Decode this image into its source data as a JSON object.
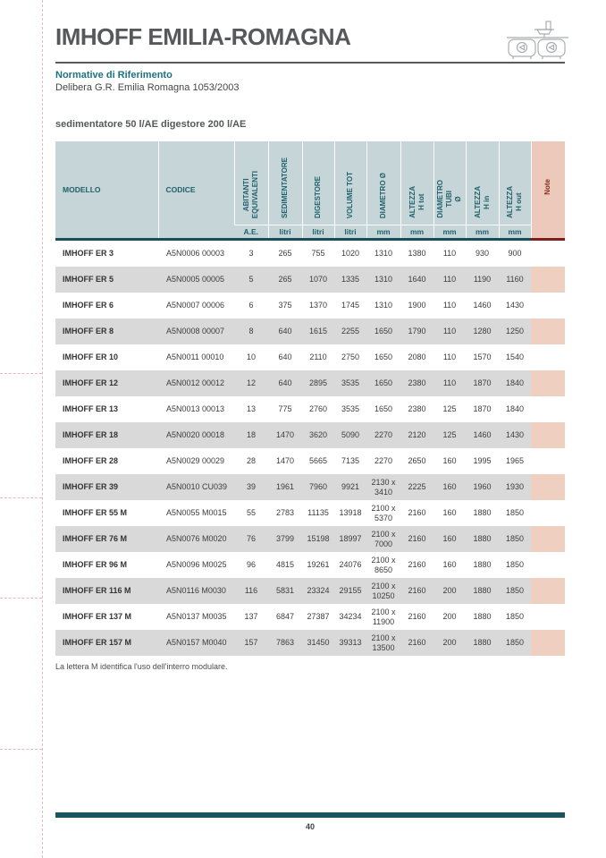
{
  "page": {
    "title": "IMHOFF EMILIA-ROMAGNA",
    "section_heading": "Normative di Riferimento",
    "section_body": "Delibera G.R. Emilia Romagna 1053/2003",
    "table_caption": "sedimentatore 50 l/AE digestore 200 l/AE",
    "footnote": "La lettera M identifica l'uso dell'interro modulare.",
    "page_number": "40",
    "header_icon": "imhoff-tanks-schematic-icon"
  },
  "colors": {
    "accent_teal": "#1a7480",
    "header_bg": "#c6d6d8",
    "header_text": "#20606c",
    "note_bg": "#ecc9ba",
    "note_text": "#8c2b21",
    "teal_border": "#16505c",
    "red_border": "#7e1f1e",
    "row_alt_bg": "#d9d9d9",
    "note_cell_bg": "#eecfc0",
    "bottom_bar": "#1b5560",
    "guide": "#e3b9b9"
  },
  "table": {
    "columns": [
      {
        "label": "MODELLO",
        "unit": ""
      },
      {
        "label": "CODICE",
        "unit": ""
      },
      {
        "label": "ABITANTI\nEQUIVALENTI",
        "unit": "A.E."
      },
      {
        "label": "SEDIMENTATORE",
        "unit": "litri"
      },
      {
        "label": "DIGESTORE",
        "unit": "litri"
      },
      {
        "label": "VOLUME TOT",
        "unit": "litri"
      },
      {
        "label": "DIAMETRO Ø",
        "unit": "mm"
      },
      {
        "label": "ALTEZZA\nH tot",
        "unit": "mm"
      },
      {
        "label": "DIAMETRO\nTUBI\nØ",
        "unit": "mm"
      },
      {
        "label": "ALTEZZA\nH in",
        "unit": "mm"
      },
      {
        "label": "ALTEZZA\nH out",
        "unit": "mm"
      },
      {
        "label": "Note",
        "unit": ""
      }
    ],
    "rows": [
      [
        "IMHOFF ER 3",
        "A5N0006 00003",
        "3",
        "265",
        "755",
        "1020",
        "1310",
        "1380",
        "110",
        "930",
        "900",
        ""
      ],
      [
        "IMHOFF ER 5",
        "A5N0005 00005",
        "5",
        "265",
        "1070",
        "1335",
        "1310",
        "1640",
        "110",
        "1190",
        "1160",
        ""
      ],
      [
        "IMHOFF ER 6",
        "A5N0007 00006",
        "6",
        "375",
        "1370",
        "1745",
        "1310",
        "1900",
        "110",
        "1460",
        "1430",
        ""
      ],
      [
        "IMHOFF ER 8",
        "A5N0008 00007",
        "8",
        "640",
        "1615",
        "2255",
        "1650",
        "1790",
        "110",
        "1280",
        "1250",
        ""
      ],
      [
        "IMHOFF ER 10",
        "A5N0011 00010",
        "10",
        "640",
        "2110",
        "2750",
        "1650",
        "2080",
        "110",
        "1570",
        "1540",
        ""
      ],
      [
        "IMHOFF ER 12",
        "A5N0012 00012",
        "12",
        "640",
        "2895",
        "3535",
        "1650",
        "2380",
        "110",
        "1870",
        "1840",
        ""
      ],
      [
        "IMHOFF ER 13",
        "A5N0013 00013",
        "13",
        "775",
        "2760",
        "3535",
        "1650",
        "2380",
        "125",
        "1870",
        "1840",
        ""
      ],
      [
        "IMHOFF ER 18",
        "A5N0020 00018",
        "18",
        "1470",
        "3620",
        "5090",
        "2270",
        "2120",
        "125",
        "1460",
        "1430",
        ""
      ],
      [
        "IMHOFF ER 28",
        "A5N0029 00029",
        "28",
        "1470",
        "5665",
        "7135",
        "2270",
        "2650",
        "160",
        "1995",
        "1965",
        ""
      ],
      [
        "IMHOFF ER 39",
        "A5N0010 CU039",
        "39",
        "1961",
        "7960",
        "9921",
        "2130 x\n3410",
        "2225",
        "160",
        "1960",
        "1930",
        ""
      ],
      [
        "IMHOFF ER 55 M",
        "A5N0055 M0015",
        "55",
        "2783",
        "11135",
        "13918",
        "2100 x\n5370",
        "2160",
        "160",
        "1880",
        "1850",
        ""
      ],
      [
        "IMHOFF ER 76 M",
        "A5N0076 M0020",
        "76",
        "3799",
        "15198",
        "18997",
        "2100 x\n7000",
        "2160",
        "160",
        "1880",
        "1850",
        ""
      ],
      [
        "IMHOFF ER 96 M",
        "A5N0096 M0025",
        "96",
        "4815",
        "19261",
        "24076",
        "2100 x\n8650",
        "2160",
        "160",
        "1880",
        "1850",
        ""
      ],
      [
        "IMHOFF ER 116 M",
        "A5N0116 M0030",
        "116",
        "5831",
        "23324",
        "29155",
        "2100 x\n10250",
        "2160",
        "200",
        "1880",
        "1850",
        ""
      ],
      [
        "IMHOFF ER 137 M",
        "A5N0137 M0035",
        "137",
        "6847",
        "27387",
        "34234",
        "2100 x\n11900",
        "2160",
        "200",
        "1880",
        "1850",
        ""
      ],
      [
        "IMHOFF ER 157 M",
        "A5N0157 M0040",
        "157",
        "7863",
        "31450",
        "39313",
        "2100 x\n13500",
        "2160",
        "200",
        "1880",
        "1850",
        ""
      ]
    ],
    "cell_names": [
      "model-cell",
      "codice-cell",
      "ae-cell",
      "sedimentatore-cell",
      "digestore-cell",
      "volume-tot-cell",
      "diametro-cell",
      "altezza-tot-cell",
      "diametro-tubi-cell",
      "altezza-in-cell",
      "altezza-out-cell",
      "note-cell"
    ]
  }
}
